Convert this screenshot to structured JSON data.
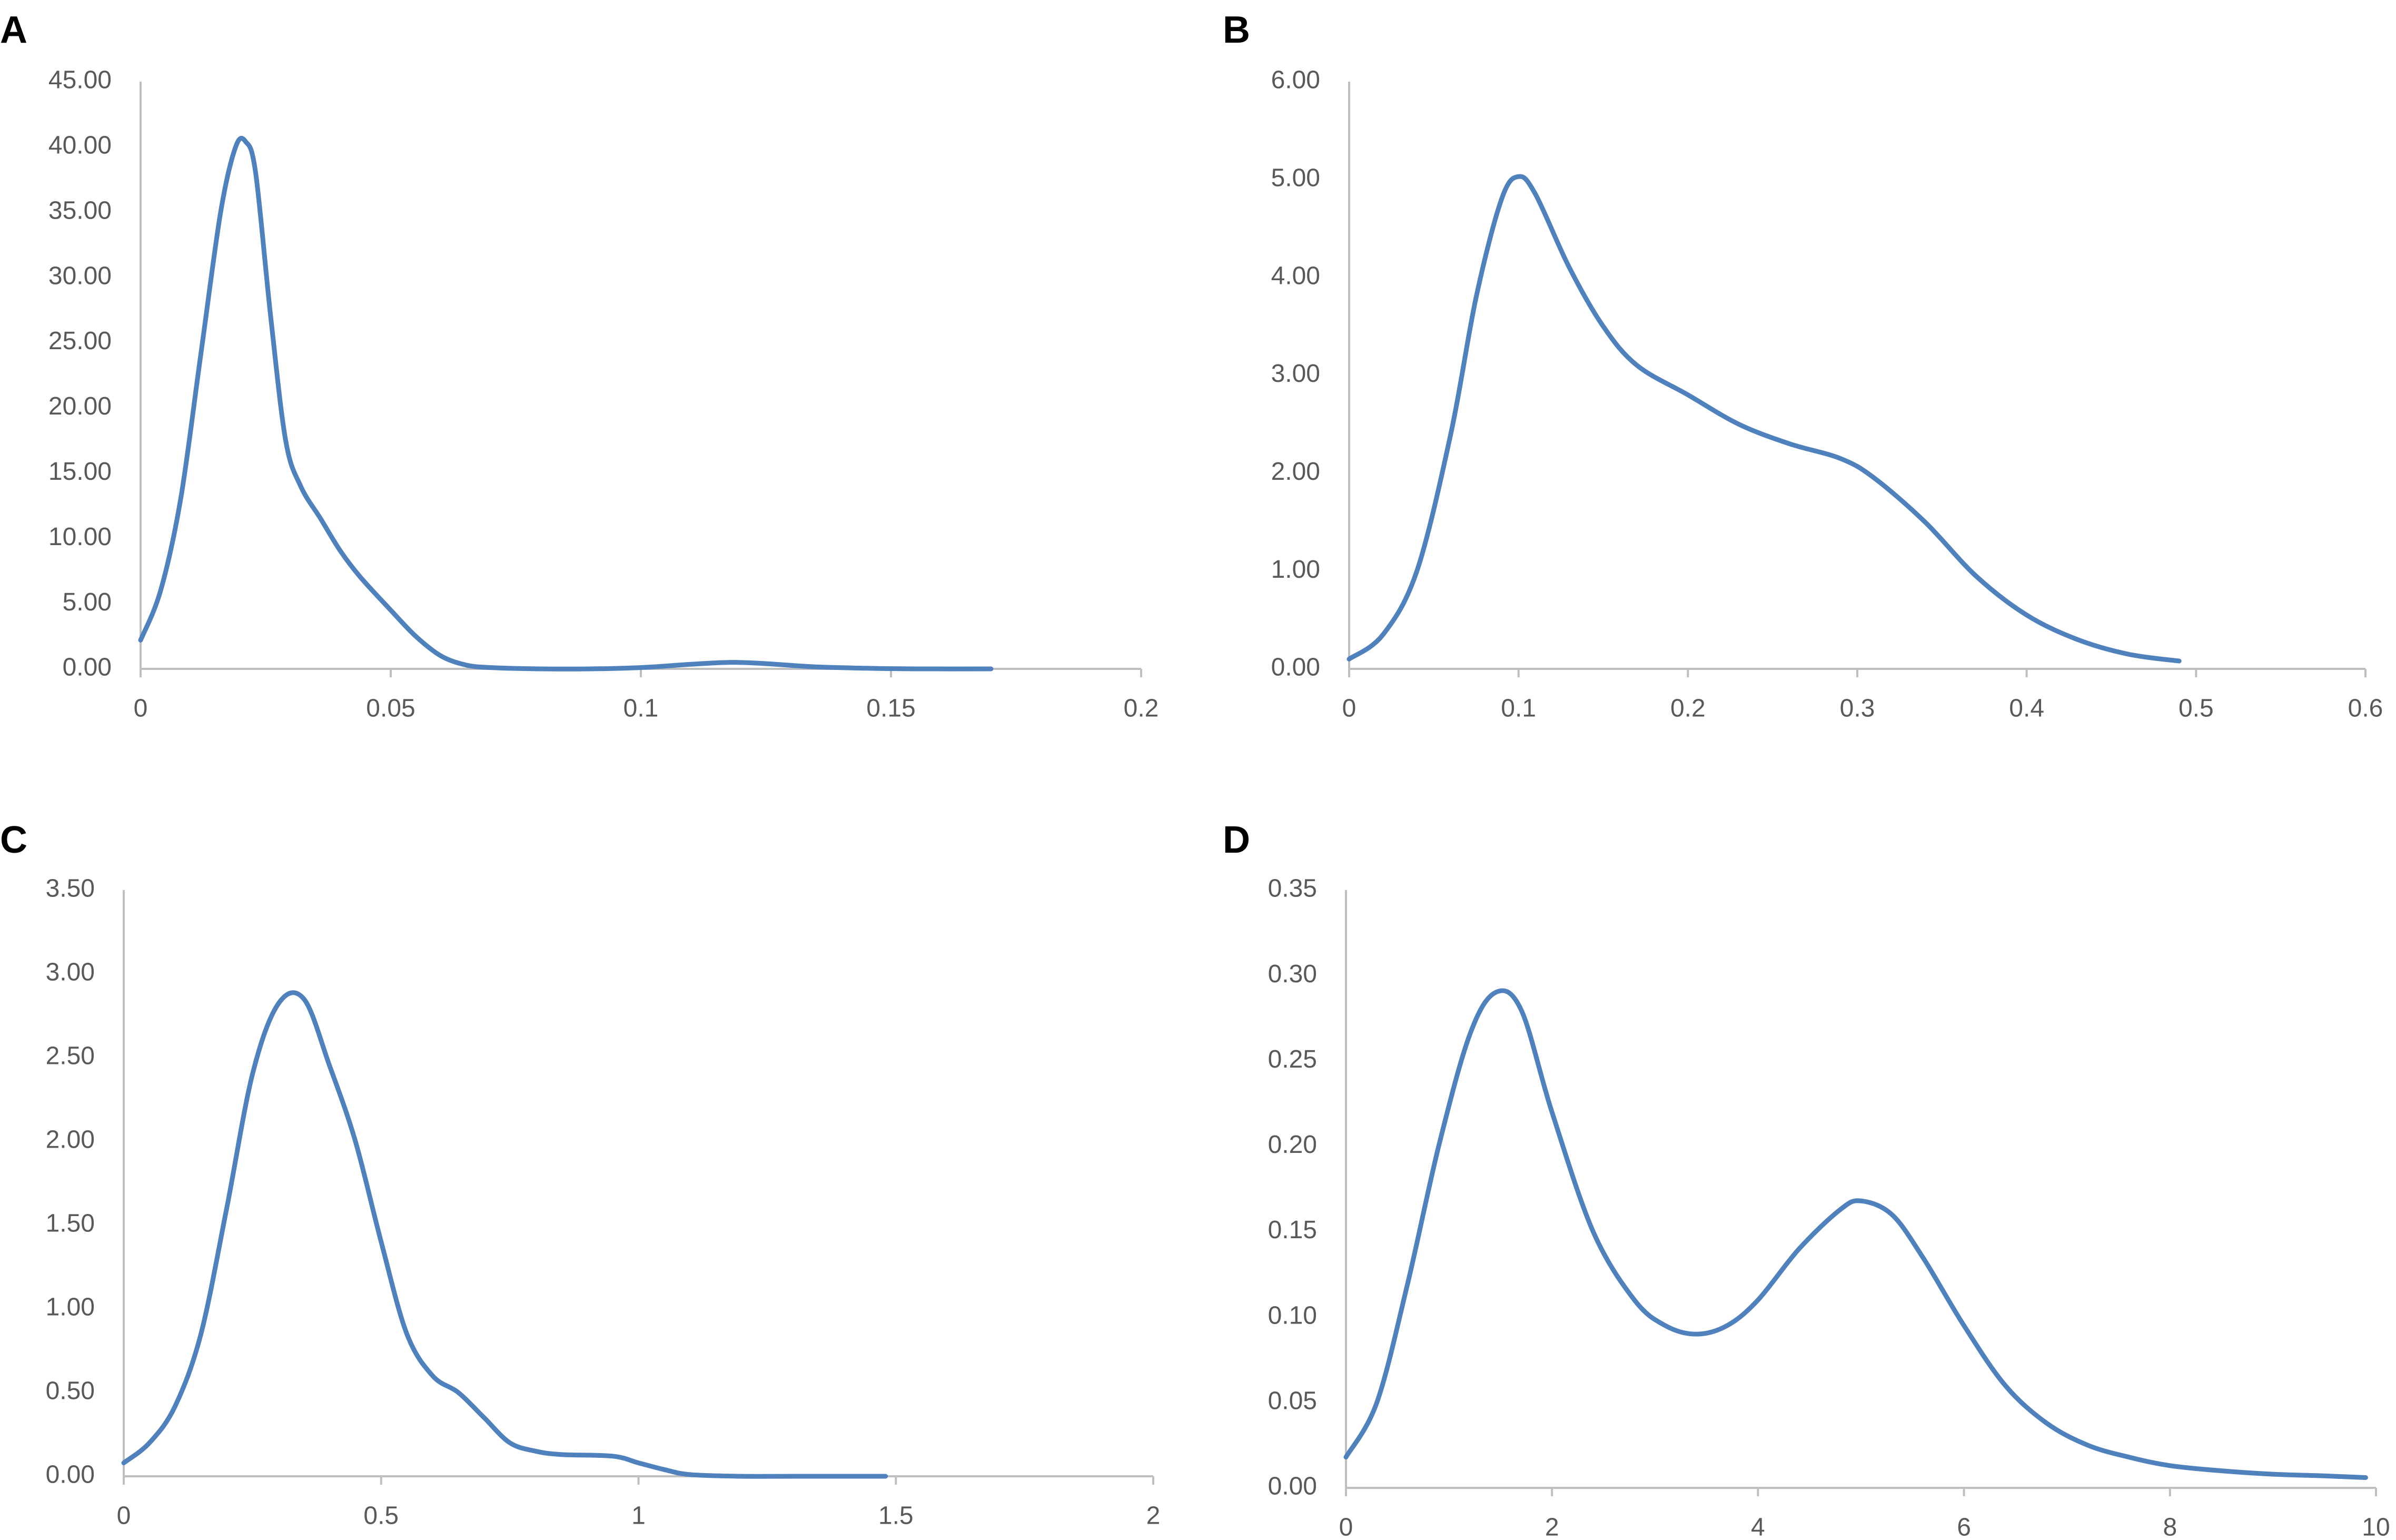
{
  "chart_data": [
    {
      "panel_label": "A",
      "type": "line",
      "xlim": [
        0,
        0.2
      ],
      "ylim": [
        0,
        45
      ],
      "x_ticks": [
        "0",
        "0.05",
        "0.1",
        "0.15",
        "0.2"
      ],
      "y_ticks": [
        "0.00",
        "5.00",
        "10.00",
        "15.00",
        "20.00",
        "25.00",
        "30.00",
        "35.00",
        "40.00",
        "45.00"
      ],
      "grid": false,
      "color": "#4f81bd",
      "series": [
        {
          "x": [
            0,
            0.004,
            0.008,
            0.012,
            0.016,
            0.019,
            0.021,
            0.023,
            0.026,
            0.029,
            0.032,
            0.036,
            0.04,
            0.044,
            0.05,
            0.055,
            0.06,
            0.065,
            0.07,
            0.08,
            0.09,
            0.1,
            0.11,
            0.118,
            0.125,
            0.135,
            0.145,
            0.155,
            0.17
          ],
          "y": [
            2.2,
            6,
            13,
            24,
            35,
            40,
            40.4,
            38,
            27,
            17.5,
            14,
            11.5,
            9,
            7,
            4.5,
            2.5,
            1,
            0.3,
            0.1,
            0,
            0,
            0.1,
            0.35,
            0.5,
            0.4,
            0.15,
            0.05,
            0,
            0
          ]
        }
      ]
    },
    {
      "panel_label": "B",
      "type": "line",
      "xlim": [
        0,
        0.6
      ],
      "ylim": [
        0,
        6
      ],
      "x_ticks": [
        "0",
        "0.1",
        "0.2",
        "0.3",
        "0.4",
        "0.5",
        "0.6"
      ],
      "y_ticks": [
        "0.00",
        "1.00",
        "2.00",
        "3.00",
        "4.00",
        "5.00",
        "6.00"
      ],
      "grid": false,
      "color": "#4f81bd",
      "series": [
        {
          "x": [
            0,
            0.02,
            0.04,
            0.06,
            0.075,
            0.09,
            0.1,
            0.11,
            0.13,
            0.15,
            0.17,
            0.2,
            0.23,
            0.26,
            0.29,
            0.31,
            0.34,
            0.37,
            0.4,
            0.43,
            0.46,
            0.49
          ],
          "y": [
            0.1,
            0.35,
            1,
            2.4,
            3.8,
            4.8,
            5.03,
            4.85,
            4.1,
            3.5,
            3.1,
            2.8,
            2.5,
            2.3,
            2.15,
            1.95,
            1.5,
            0.95,
            0.55,
            0.3,
            0.15,
            0.08
          ]
        }
      ]
    },
    {
      "panel_label": "C",
      "type": "line",
      "xlim": [
        0,
        2
      ],
      "ylim": [
        0,
        3.5
      ],
      "x_ticks": [
        "0",
        "0.5",
        "1",
        "1.5",
        "2"
      ],
      "y_ticks": [
        "0.00",
        "0.50",
        "1.00",
        "1.50",
        "2.00",
        "2.50",
        "3.00",
        "3.50"
      ],
      "grid": false,
      "color": "#4f81bd",
      "series": [
        {
          "x": [
            0,
            0.05,
            0.1,
            0.15,
            0.2,
            0.25,
            0.3,
            0.35,
            0.4,
            0.45,
            0.5,
            0.55,
            0.6,
            0.65,
            0.7,
            0.75,
            0.8,
            0.85,
            0.95,
            1.0,
            1.05,
            1.1,
            1.2,
            1.3,
            1.48
          ],
          "y": [
            0.08,
            0.2,
            0.42,
            0.85,
            1.6,
            2.4,
            2.82,
            2.85,
            2.45,
            2.0,
            1.4,
            0.85,
            0.6,
            0.5,
            0.35,
            0.2,
            0.15,
            0.13,
            0.12,
            0.08,
            0.04,
            0.01,
            0,
            0,
            0
          ]
        }
      ]
    },
    {
      "panel_label": "D",
      "type": "line",
      "xlim": [
        0,
        10
      ],
      "ylim": [
        0,
        0.35
      ],
      "x_ticks": [
        "0",
        "2",
        "4",
        "6",
        "8",
        "10"
      ],
      "y_ticks": [
        "0.00",
        "0.05",
        "0.10",
        "0.15",
        "0.20",
        "0.25",
        "0.30",
        "0.35"
      ],
      "grid": false,
      "color": "#4f81bd",
      "series": [
        {
          "x": [
            0,
            0.3,
            0.6,
            0.9,
            1.2,
            1.45,
            1.7,
            2.0,
            2.4,
            2.8,
            3.1,
            3.4,
            3.7,
            4.0,
            4.4,
            4.8,
            5.0,
            5.3,
            5.6,
            6.0,
            6.4,
            6.8,
            7.2,
            7.6,
            8.0,
            8.5,
            9.0,
            9.5,
            9.9
          ],
          "y": [
            0.018,
            0.05,
            0.12,
            0.2,
            0.265,
            0.29,
            0.28,
            0.22,
            0.15,
            0.11,
            0.095,
            0.09,
            0.095,
            0.11,
            0.14,
            0.163,
            0.168,
            0.16,
            0.135,
            0.095,
            0.06,
            0.038,
            0.025,
            0.018,
            0.013,
            0.01,
            0.008,
            0.007,
            0.006
          ]
        }
      ]
    }
  ]
}
